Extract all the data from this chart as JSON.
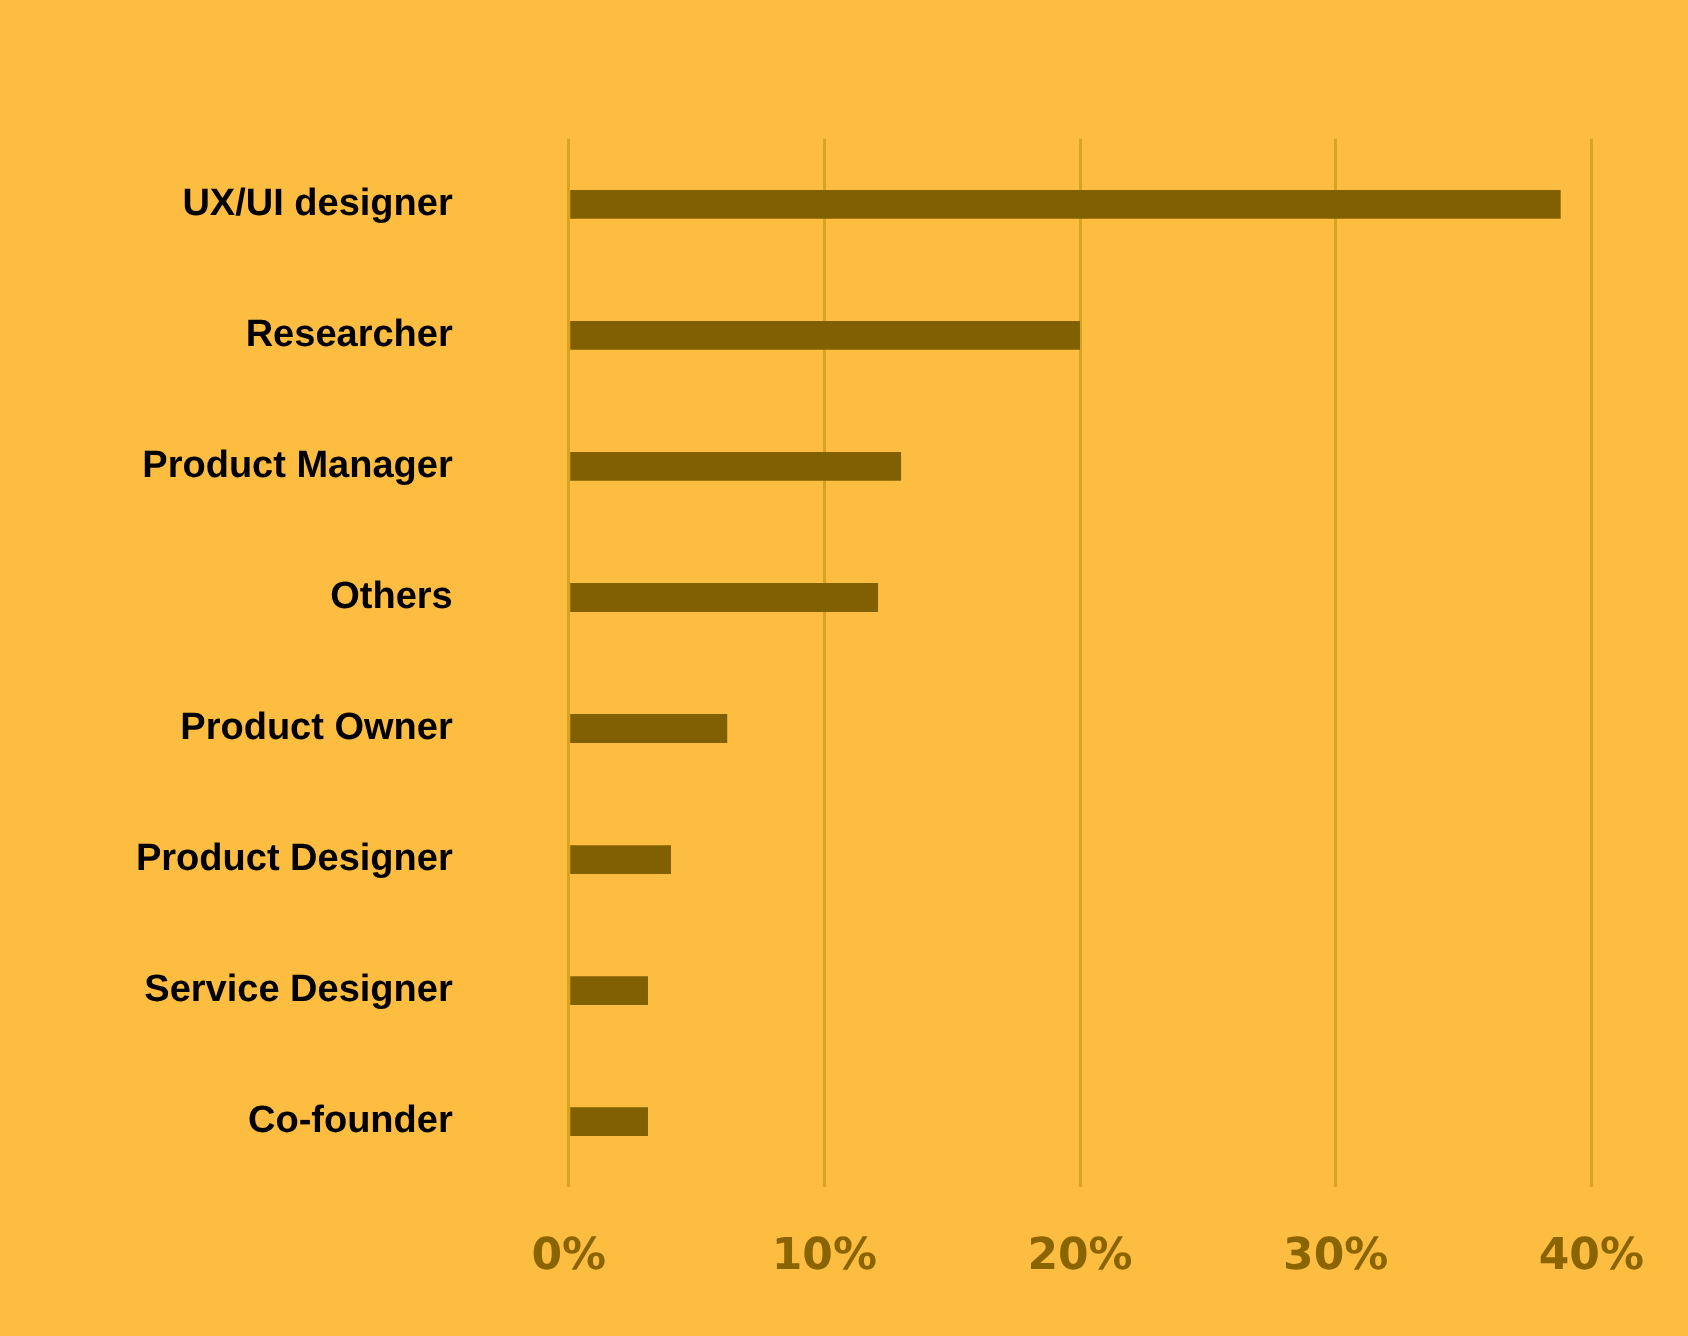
{
  "chart_data": {
    "type": "bar",
    "orientation": "horizontal",
    "categories": [
      "UX/UI designer",
      "Researcher",
      "Product Manager",
      "Others",
      "Product Owner",
      "Product Designer",
      "Service Designer",
      "Co-founder"
    ],
    "values": [
      38.8,
      20,
      13,
      12.1,
      6.2,
      4,
      3.1,
      3.1
    ],
    "color": "#806000",
    "xlim": [
      0,
      40
    ],
    "xticks": [
      {
        "value": 0,
        "label": "0%"
      },
      {
        "value": 10,
        "label": "10%"
      },
      {
        "value": 20,
        "label": "20%"
      },
      {
        "value": 30,
        "label": "30%"
      },
      {
        "value": 40,
        "label": "40%"
      }
    ],
    "grid": "x",
    "legend": false
  }
}
